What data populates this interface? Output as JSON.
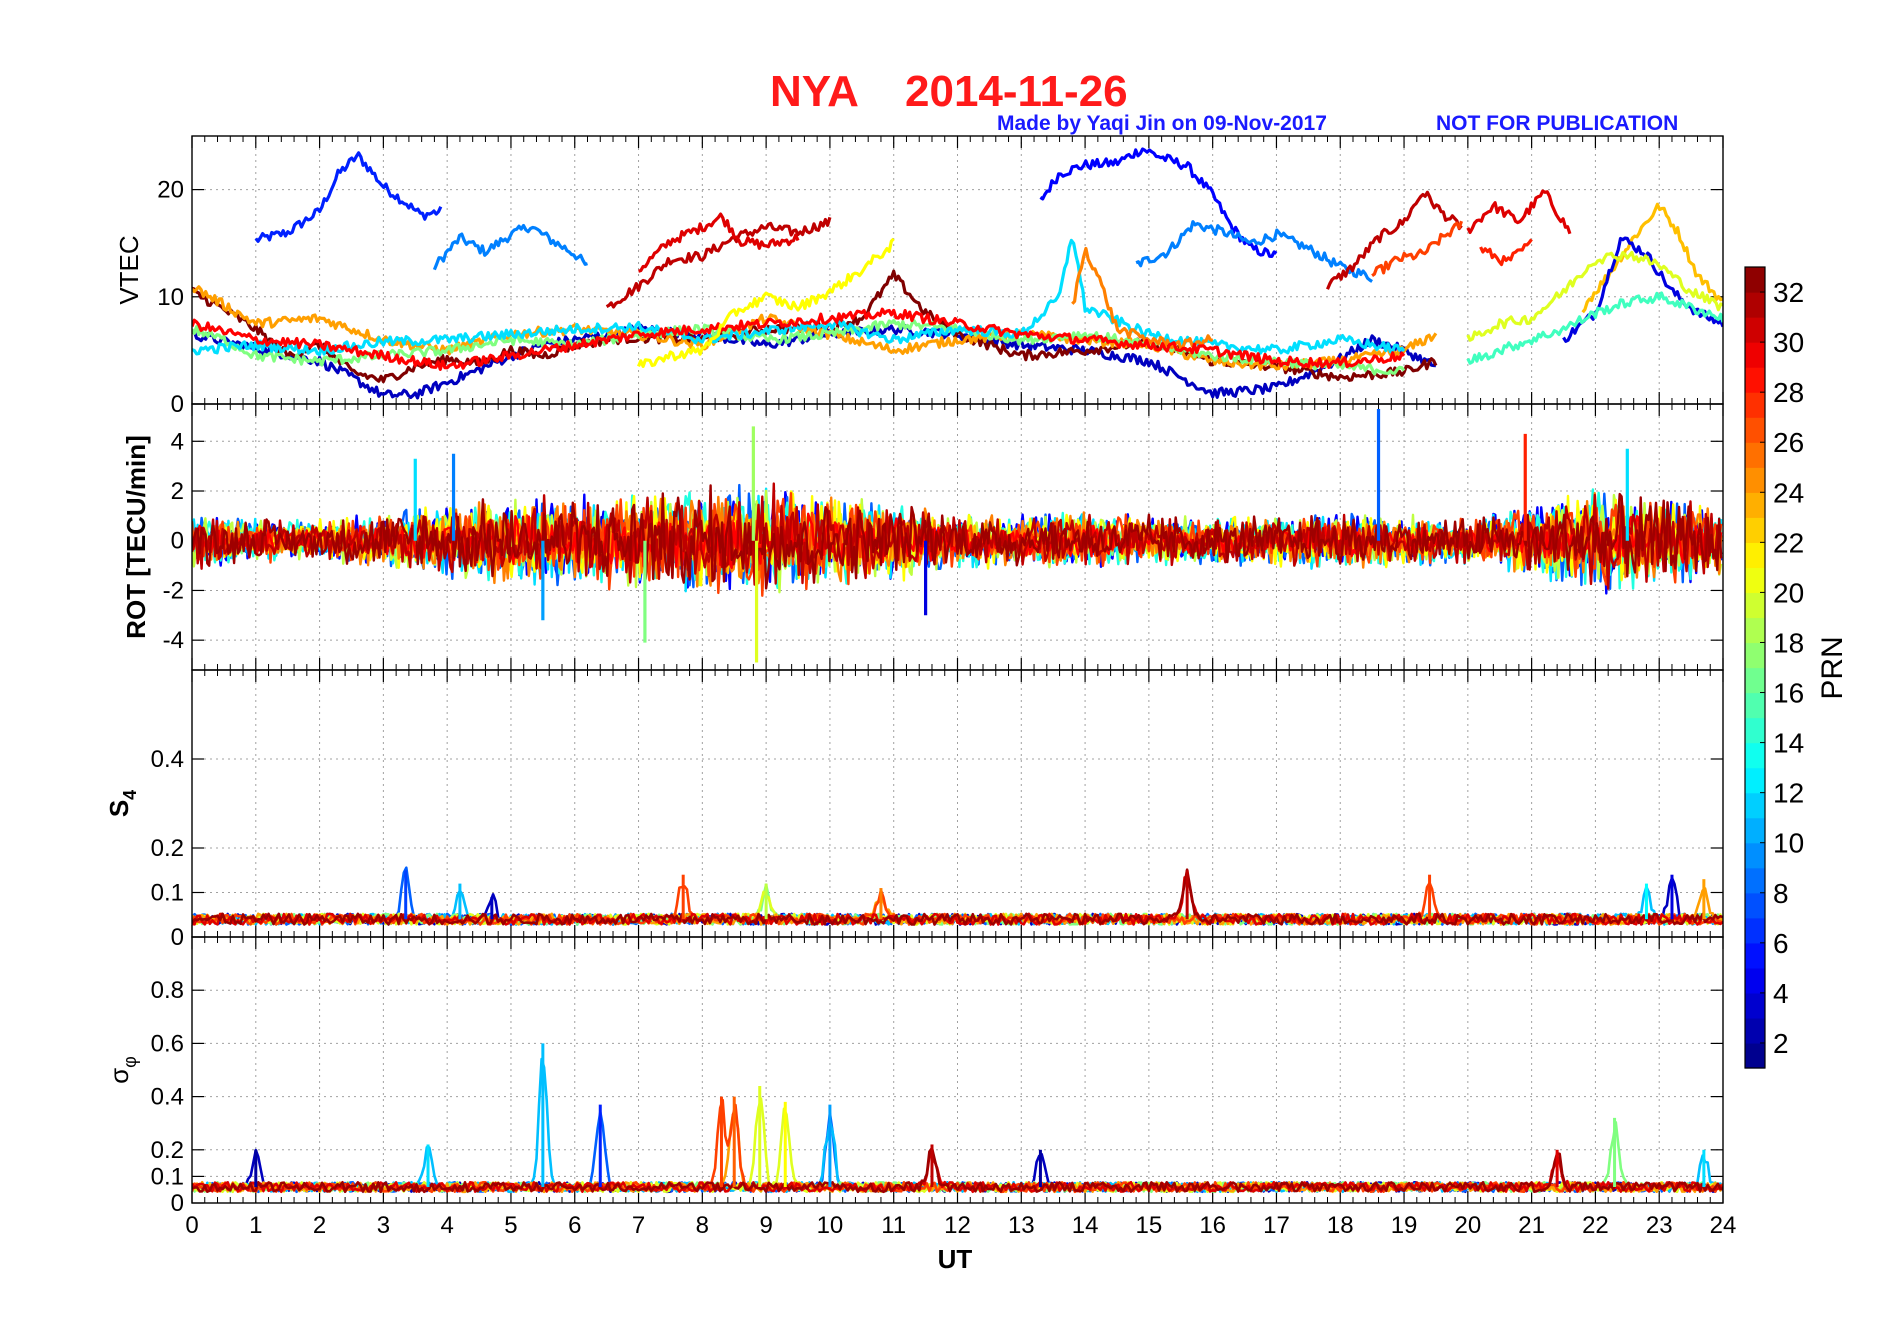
{
  "title": {
    "station": "NYA",
    "date": "2014-11-26",
    "credit": "Made by Yaqi Jin on 09-Nov-2017",
    "notice": "NOT FOR PUBLICATION"
  },
  "colors": {
    "title": "#ff1a1a",
    "credit": "#1a1aff",
    "grid": "#a0a0a0",
    "colormap": "jet"
  },
  "chart_data": {
    "type": "line",
    "x": {
      "label": "UT",
      "range": [
        0,
        24
      ],
      "ticks": [
        "0",
        "1",
        "2",
        "3",
        "4",
        "5",
        "6",
        "7",
        "8",
        "9",
        "10",
        "11",
        "12",
        "13",
        "14",
        "15",
        "16",
        "17",
        "18",
        "19",
        "20",
        "21",
        "22",
        "23",
        "24"
      ]
    },
    "colorbar": {
      "label": "PRN",
      "range": [
        1,
        33
      ],
      "ticks": [
        "2",
        "4",
        "6",
        "8",
        "10",
        "12",
        "14",
        "16",
        "18",
        "20",
        "22",
        "24",
        "26",
        "28",
        "30",
        "32"
      ]
    },
    "panels": [
      {
        "id": "vtec",
        "ylabel": "VTEC",
        "ylim": [
          0,
          25
        ],
        "yticks": [
          "0",
          "10",
          "20"
        ],
        "series": [
          {
            "prn": 6,
            "x": [
              1.0,
              1.5,
              2.0,
              2.3,
              2.6,
              2.8,
              3.0,
              3.3,
              3.6,
              3.9
            ],
            "values": [
              15.3,
              16.0,
              18.0,
              21.5,
              23.2,
              21.8,
              20.3,
              19.0,
              17.6,
              18.0
            ]
          },
          {
            "prn": 9,
            "x": [
              3.8,
              4.2,
              4.6,
              5.0,
              5.3,
              5.6,
              6.0,
              6.2
            ],
            "values": [
              12.8,
              15.5,
              14.2,
              15.8,
              16.6,
              15.4,
              14.0,
              12.8
            ]
          },
          {
            "prn": 5,
            "x": [
              13.3,
              13.6,
              14.0,
              14.5,
              14.9,
              15.2,
              15.6,
              16.0,
              16.3,
              16.6,
              17.0
            ],
            "values": [
              19.0,
              21.5,
              22.3,
              22.5,
              23.8,
              23.0,
              22.2,
              19.5,
              16.5,
              14.5,
              13.8
            ]
          },
          {
            "prn": 9,
            "x": [
              14.8,
              15.3,
              15.7,
              16.2,
              16.6,
              17.0,
              17.5,
              18.0,
              18.5
            ],
            "values": [
              13.0,
              14.2,
              16.8,
              16.0,
              15.0,
              15.8,
              14.5,
              12.8,
              11.8
            ]
          },
          {
            "prn": 31,
            "x": [
              6.5,
              7.0,
              7.5,
              8.0,
              8.5,
              9.0,
              9.5,
              10.0
            ],
            "values": [
              9.0,
              11.0,
              13.5,
              13.8,
              15.5,
              16.5,
              16.0,
              17.0
            ]
          },
          {
            "prn": 30,
            "x": [
              7.0,
              7.5,
              8.0,
              8.3,
              8.6,
              9.0,
              9.5
            ],
            "values": [
              12.5,
              15.2,
              16.5,
              17.5,
              15.2,
              14.8,
              15.5
            ]
          },
          {
            "prn": 31,
            "x": [
              17.8,
              18.2,
              18.6,
              19.0,
              19.3,
              19.6,
              19.9
            ],
            "values": [
              11.0,
              12.8,
              15.5,
              17.0,
              19.8,
              17.8,
              16.5
            ]
          },
          {
            "prn": 27,
            "x": [
              18.5,
              18.9,
              19.3,
              19.6,
              19.9
            ],
            "values": [
              12.0,
              13.5,
              14.0,
              15.5,
              16.8
            ]
          },
          {
            "prn": 30,
            "x": [
              20.0,
              20.4,
              20.8,
              21.2,
              21.6
            ],
            "values": [
              16.2,
              18.5,
              17.0,
              19.8,
              16.0
            ]
          },
          {
            "prn": 28,
            "x": [
              20.2,
              20.6,
              21.0
            ],
            "values": [
              14.5,
              13.2,
              15.0
            ]
          },
          {
            "prn": 23,
            "x": [
              21.8,
              22.2,
              22.6,
              23.0,
              23.3,
              23.6,
              24.0
            ],
            "values": [
              9.0,
              12.0,
              15.5,
              18.5,
              16.0,
              12.0,
              9.5
            ]
          },
          {
            "prn": 4,
            "x": [
              21.5,
              22.0,
              22.4,
              22.8,
              23.2,
              23.6,
              24.0
            ],
            "values": [
              6.0,
              8.5,
              15.5,
              14.0,
              10.5,
              8.5,
              7.5
            ]
          },
          {
            "prn": 3,
            "x": [
              0.0,
              1.0,
              2.0,
              2.5,
              3.0,
              3.5,
              4.0,
              4.5,
              5.0,
              5.5,
              6.0,
              7.0,
              8.0,
              9.0,
              10.0,
              11.0,
              12.0,
              13.0,
              14.0,
              15.0,
              15.5,
              16.0,
              16.5,
              17.0,
              17.5,
              18.0,
              18.5,
              19.0,
              19.5
            ],
            "values": [
              6.5,
              5.2,
              4.0,
              2.5,
              0.8,
              0.9,
              2.0,
              3.2,
              4.5,
              5.5,
              6.0,
              7.0,
              6.5,
              5.5,
              6.5,
              7.0,
              6.5,
              5.5,
              5.0,
              4.0,
              2.5,
              1.0,
              1.2,
              1.5,
              2.8,
              4.2,
              6.0,
              5.0,
              3.5
            ]
          },
          {
            "prn": 33,
            "x": [
              0.0,
              0.5,
              1.0,
              1.5,
              2.0,
              2.5,
              3.0,
              3.5,
              4.0,
              4.5,
              5.0,
              5.5,
              6.0,
              6.5,
              7.0,
              8.0,
              9.0,
              10.0,
              10.5,
              11.0,
              11.5,
              12.0,
              13.0,
              14.0,
              15.0,
              16.0,
              17.0,
              18.0,
              19.0,
              19.5
            ],
            "values": [
              10.5,
              8.8,
              7.0,
              4.5,
              5.5,
              3.0,
              2.2,
              3.5,
              4.2,
              3.8,
              5.0,
              4.5,
              5.5,
              6.0,
              6.2,
              6.0,
              7.0,
              7.2,
              8.0,
              12.0,
              8.5,
              6.5,
              4.5,
              5.0,
              5.8,
              4.0,
              3.5,
              2.5,
              3.0,
              4.0
            ]
          },
          {
            "prn": 24,
            "x": [
              0.0,
              1.0,
              2.0,
              3.0,
              4.0,
              5.0,
              6.0,
              7.0,
              8.0,
              9.0,
              10.0,
              11.0,
              12.0,
              13.0,
              14.0,
              15.0,
              16.0,
              17.0,
              18.0,
              19.0,
              19.5
            ],
            "values": [
              11.0,
              7.5,
              8.0,
              6.0,
              5.0,
              6.5,
              7.0,
              6.5,
              5.5,
              8.0,
              6.5,
              5.0,
              6.0,
              6.5,
              6.0,
              5.5,
              4.0,
              3.5,
              4.0,
              5.0,
              6.5
            ]
          },
          {
            "prn": 17,
            "x": [
              0.0,
              0.5,
              1.0,
              2.0,
              3.0,
              4.0,
              5.0,
              6.0,
              7.0,
              8.0,
              9.0,
              10.0,
              11.0,
              12.0,
              13.0,
              14.0,
              15.0,
              16.0,
              17.0,
              18.0,
              19.0
            ],
            "values": [
              7.0,
              6.0,
              4.5,
              4.0,
              4.5,
              5.0,
              6.0,
              5.5,
              6.5,
              7.0,
              6.0,
              6.5,
              7.5,
              7.0,
              6.0,
              6.5,
              5.5,
              4.5,
              4.0,
              3.5,
              3.0
            ]
          },
          {
            "prn": 12,
            "x": [
              0.0,
              1.0,
              2.0,
              3.0,
              4.0,
              5.0,
              6.0,
              7.0,
              8.0,
              9.0,
              10.0,
              11.0,
              12.0,
              13.0,
              13.6,
              13.8,
              14.0,
              15.0,
              16.0,
              17.0,
              18.0,
              19.0
            ],
            "values": [
              5.0,
              5.5,
              5.0,
              5.8,
              6.0,
              6.5,
              7.0,
              7.2,
              6.0,
              6.8,
              7.5,
              6.0,
              7.0,
              6.5,
              10.0,
              16.0,
              9.0,
              6.5,
              5.5,
              5.0,
              6.0,
              5.0
            ]
          },
          {
            "prn": 25,
            "x": [
              13.8,
              14.0,
              14.2,
              14.5,
              15.0,
              15.5,
              16.0
            ],
            "values": [
              9.0,
              14.5,
              12.0,
              7.0,
              6.0,
              5.5,
              6.0
            ]
          },
          {
            "prn": 29,
            "x": [
              0.0,
              1.0,
              2.0,
              3.0,
              4.0,
              5.0,
              6.0,
              7.0,
              8.0,
              9.0,
              10.0,
              11.0,
              12.0,
              13.0,
              14.0,
              15.0,
              16.0,
              17.0,
              18.0,
              19.0
            ],
            "values": [
              7.5,
              6.0,
              5.5,
              4.5,
              3.5,
              4.5,
              5.5,
              6.5,
              7.0,
              7.5,
              8.0,
              8.5,
              7.5,
              6.5,
              6.0,
              5.5,
              5.0,
              4.0,
              3.8,
              4.5
            ]
          },
          {
            "prn": 21,
            "x": [
              7.0,
              7.5,
              8.0,
              8.5,
              9.0,
              9.5,
              10.0,
              10.5,
              11.0
            ],
            "values": [
              3.5,
              4.5,
              5.0,
              8.5,
              10.0,
              9.0,
              10.5,
              12.5,
              15.0
            ]
          },
          {
            "prn": 20,
            "x": [
              20.0,
              20.5,
              21.0,
              21.5,
              22.0,
              22.5,
              23.0,
              23.5,
              24.0
            ],
            "values": [
              6.0,
              7.5,
              8.0,
              10.5,
              13.5,
              14.0,
              13.0,
              10.5,
              9.0
            ]
          },
          {
            "prn": 15,
            "x": [
              20.0,
              20.5,
              21.0,
              21.5,
              22.0,
              22.5,
              23.0,
              23.5,
              24.0
            ],
            "values": [
              4.0,
              5.0,
              6.0,
              7.0,
              8.5,
              9.5,
              10.0,
              9.0,
              8.0
            ]
          }
        ]
      },
      {
        "id": "rot",
        "ylabel": "ROT [TECU/min]",
        "ylim": [
          -5.2,
          5.5
        ],
        "yticks": [
          "-4",
          "-2",
          "0",
          "2",
          "4"
        ],
        "activity": {
          "x": [
            0,
            1,
            2,
            3,
            4,
            5,
            6,
            7,
            8,
            9,
            10,
            11,
            12,
            13,
            14,
            15,
            16,
            17,
            18,
            19,
            20,
            21,
            22,
            23,
            24
          ],
          "amplitude": [
            1.2,
            1.0,
            0.9,
            1.2,
            1.6,
            1.9,
            1.9,
            2.1,
            2.3,
            2.4,
            1.9,
            1.7,
            1.2,
            1.1,
            1.3,
            1.1,
            1.0,
            1.1,
            1.2,
            1.1,
            1.0,
            1.5,
            2.2,
            1.9,
            1.5
          ]
        },
        "spikes": [
          {
            "x": 8.8,
            "value": 4.6,
            "prn": 18
          },
          {
            "x": 8.85,
            "value": -4.9,
            "prn": 20
          },
          {
            "x": 7.1,
            "value": -4.1,
            "prn": 17
          },
          {
            "x": 18.6,
            "value": 5.3,
            "prn": 8
          },
          {
            "x": 20.9,
            "value": 4.3,
            "prn": 28
          },
          {
            "x": 5.5,
            "value": -3.2,
            "prn": 10
          },
          {
            "x": 11.5,
            "value": -3.0,
            "prn": 4
          },
          {
            "x": 22.5,
            "value": 3.7,
            "prn": 12
          },
          {
            "x": 4.1,
            "value": 3.5,
            "prn": 9
          },
          {
            "x": 3.5,
            "value": 3.3,
            "prn": 12
          }
        ]
      },
      {
        "id": "s4",
        "ylabel": "S4",
        "ylim": [
          0,
          0.6
        ],
        "yticks": [
          "0",
          "0.1",
          "0.2",
          "0.4"
        ],
        "baseline": 0.04,
        "peaks": [
          {
            "x": 3.35,
            "value": 0.15,
            "prn": 7
          },
          {
            "x": 4.2,
            "value": 0.12,
            "prn": 11
          },
          {
            "x": 4.7,
            "value": 0.09,
            "prn": 3
          },
          {
            "x": 7.7,
            "value": 0.14,
            "prn": 27
          },
          {
            "x": 9.0,
            "value": 0.12,
            "prn": 19
          },
          {
            "x": 10.8,
            "value": 0.11,
            "prn": 25
          },
          {
            "x": 15.6,
            "value": 0.15,
            "prn": 31
          },
          {
            "x": 19.4,
            "value": 0.14,
            "prn": 27
          },
          {
            "x": 22.8,
            "value": 0.12,
            "prn": 13
          },
          {
            "x": 23.2,
            "value": 0.14,
            "prn": 4
          },
          {
            "x": 23.7,
            "value": 0.13,
            "prn": 24
          }
        ]
      },
      {
        "id": "sigma_phi",
        "ylabel": "σφ",
        "ylim": [
          0,
          1.0
        ],
        "yticks": [
          "0",
          "0.1",
          "0.2",
          "0.4",
          "0.6",
          "0.8"
        ],
        "baseline": 0.06,
        "peaks": [
          {
            "x": 5.5,
            "value": 0.6,
            "prn": 11
          },
          {
            "x": 6.4,
            "value": 0.37,
            "prn": 6
          },
          {
            "x": 8.3,
            "value": 0.4,
            "prn": 27
          },
          {
            "x": 8.5,
            "value": 0.4,
            "prn": 26
          },
          {
            "x": 8.9,
            "value": 0.44,
            "prn": 20
          },
          {
            "x": 9.3,
            "value": 0.38,
            "prn": 21
          },
          {
            "x": 10.0,
            "value": 0.37,
            "prn": 10
          },
          {
            "x": 1.0,
            "value": 0.2,
            "prn": 2
          },
          {
            "x": 3.7,
            "value": 0.22,
            "prn": 12
          },
          {
            "x": 11.6,
            "value": 0.22,
            "prn": 31
          },
          {
            "x": 13.3,
            "value": 0.2,
            "prn": 2
          },
          {
            "x": 22.3,
            "value": 0.32,
            "prn": 17
          },
          {
            "x": 21.4,
            "value": 0.2,
            "prn": 30
          },
          {
            "x": 23.7,
            "value": 0.2,
            "prn": 12
          }
        ]
      }
    ]
  }
}
